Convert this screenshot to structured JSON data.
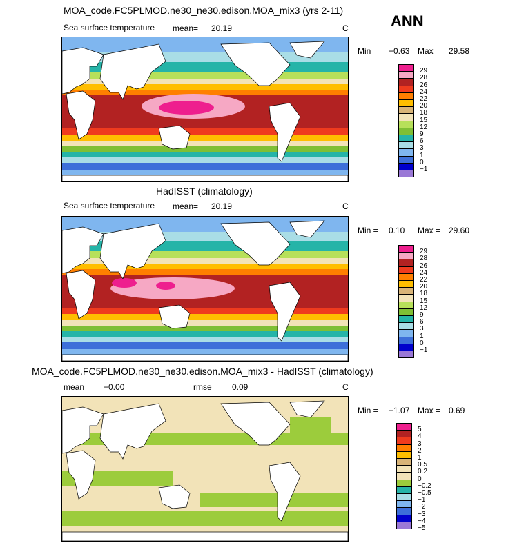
{
  "season": "ANN",
  "panels": [
    {
      "title": "MOA_code.FC5PLMOD.ne30_ne30.edison.MOA_mix3 (yrs 2-11)",
      "variable": "Sea surface temperature",
      "stat1_label": "mean=",
      "stat1_value": "20.19",
      "stat2_label": "",
      "stat2_value": "",
      "units": "C",
      "min_label": "Min =",
      "min_value": "−0.63",
      "max_label": "Max =",
      "max_value": "29.58",
      "colorbar": {
        "labels": [
          "29",
          "28",
          "26",
          "24",
          "22",
          "20",
          "18",
          "15",
          "12",
          "9",
          "6",
          "3",
          "1",
          "0",
          "−1"
        ],
        "colors": [
          "#ee1f8e",
          "#f6a8c4",
          "#b22222",
          "#ef3b1e",
          "#ff7f00",
          "#ffbe00",
          "#d8b478",
          "#f2e3b8",
          "#b7e05a",
          "#7fbf35",
          "#25b4a8",
          "#a9dde6",
          "#7fb6ef",
          "#3d6fd9",
          "#0000cc",
          "#9a78d6"
        ]
      }
    },
    {
      "title": "HadISST (climatology)",
      "variable": "Sea surface temperature",
      "stat1_label": "mean=",
      "stat1_value": "20.19",
      "stat2_label": "",
      "stat2_value": "",
      "units": "C",
      "min_label": "Min =",
      "min_value": "0.10",
      "max_label": "Max =",
      "max_value": "29.60",
      "colorbar": {
        "labels": [
          "29",
          "28",
          "26",
          "24",
          "22",
          "20",
          "18",
          "15",
          "12",
          "9",
          "6",
          "3",
          "1",
          "0",
          "−1"
        ],
        "colors": [
          "#ee1f8e",
          "#f6a8c4",
          "#b22222",
          "#ef3b1e",
          "#ff7f00",
          "#ffbe00",
          "#d8b478",
          "#f2e3b8",
          "#b7e05a",
          "#7fbf35",
          "#25b4a8",
          "#a9dde6",
          "#7fb6ef",
          "#3d6fd9",
          "#0000cc",
          "#9a78d6"
        ]
      }
    },
    {
      "title": "MOA_code.FC5PLMOD.ne30_ne30.edison.MOA_mix3 - HadISST (climatology)",
      "variable": "",
      "stat1_label": "mean =",
      "stat1_value": "−0.00",
      "stat2_label": "rmse =",
      "stat2_value": "0.09",
      "units": "C",
      "min_label": "Min =",
      "min_value": "−1.07",
      "max_label": "Max =",
      "max_value": "0.69",
      "colorbar": {
        "labels": [
          "5",
          "4",
          "3",
          "2",
          "1",
          "0.5",
          "0.2",
          "0",
          "−0.2",
          "−0.5",
          "−1",
          "−2",
          "−3",
          "−4",
          "−5"
        ],
        "colors": [
          "#ee1f8e",
          "#b22222",
          "#ef3b1e",
          "#ff7f00",
          "#ffbe00",
          "#d8b478",
          "#f2e3b8",
          "#f2e3b8",
          "#9ccc3c",
          "#25b4a8",
          "#a9dde6",
          "#7fb6ef",
          "#3d6fd9",
          "#0000cc",
          "#9a78d6"
        ]
      }
    }
  ]
}
